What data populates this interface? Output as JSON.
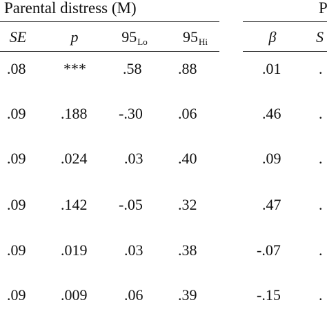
{
  "header": {
    "group_left_title": "Parental distress (M)",
    "group_right_title_partial": "P",
    "columns_left": {
      "se": "SE",
      "p": "p",
      "lo_base": "95",
      "lo_sub": "Lo",
      "hi_base": "95",
      "hi_sub": "Hi"
    },
    "columns_right": {
      "beta": "β",
      "se_partial": "S"
    }
  },
  "rows": [
    {
      "se": ".08",
      "p": "***",
      "lo": ".58",
      "hi": ".88",
      "beta": ".01",
      "next_partial": "."
    },
    {
      "se": ".09",
      "p": ".188",
      "lo": "-.30",
      "hi": ".06",
      "beta": ".46",
      "next_partial": "."
    },
    {
      "se": ".09",
      "p": ".024",
      "lo": ".03",
      "hi": ".40",
      "beta": ".09",
      "next_partial": "."
    },
    {
      "se": ".09",
      "p": ".142",
      "lo": "-.05",
      "hi": ".32",
      "beta": ".47",
      "next_partial": "."
    },
    {
      "se": ".09",
      "p": ".019",
      "lo": ".03",
      "hi": ".38",
      "beta": "-.07",
      "next_partial": "."
    },
    {
      "se": ".09",
      "p": ".009",
      "lo": ".06",
      "hi": ".39",
      "beta": "-.15",
      "next_partial": "."
    }
  ]
}
